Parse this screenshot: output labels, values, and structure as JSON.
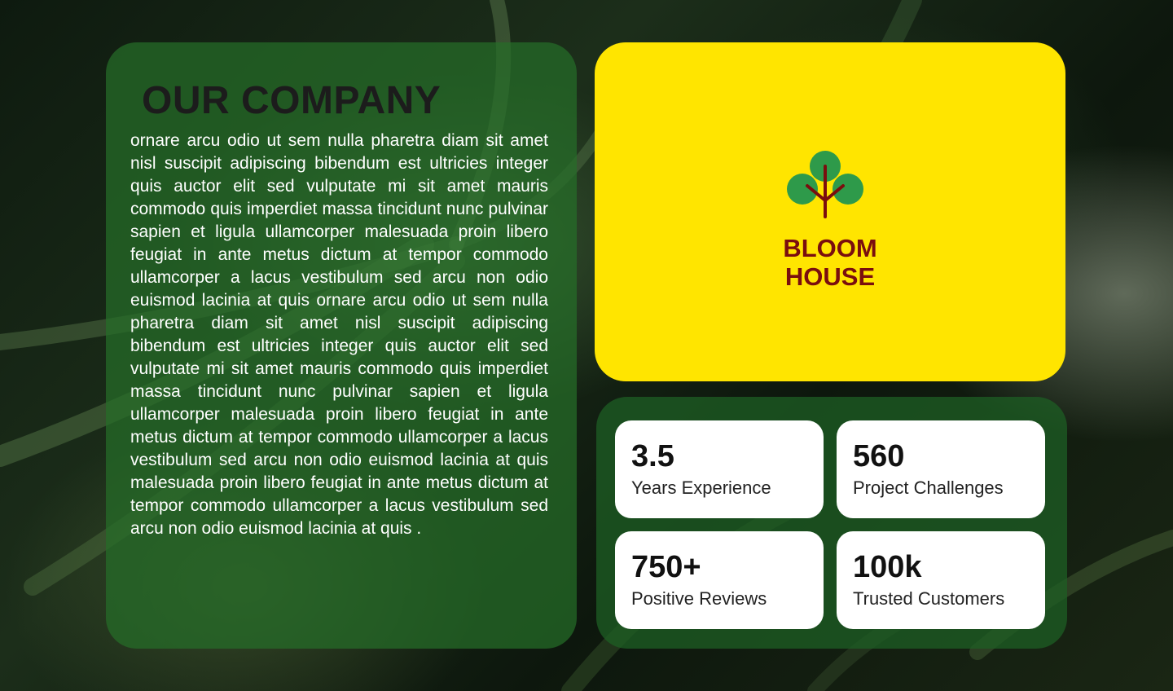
{
  "company": {
    "title": "OUR COMPANY",
    "body": "ornare arcu odio ut sem nulla pharetra diam sit amet nisl suscipit adipiscing bibendum est ultricies integer quis auctor elit sed vulputate mi sit amet mauris commodo quis imperdiet massa tincidunt nunc pulvinar sapien et ligula ullamcorper malesuada proin libero feugiat in ante metus dictum at tempor commodo ullamcorper a lacus vestibulum sed arcu non odio euismod lacinia at quis ornare arcu odio ut sem nulla pharetra diam sit amet nisl suscipit adipiscing bibendum est ultricies integer quis auctor elit sed vulputate mi sit amet mauris commodo quis imperdiet massa tincidunt nunc pulvinar sapien et ligula ullamcorper malesuada proin libero feugiat in ante metus dictum at tempor commodo ullamcorper a lacus vestibulum sed arcu non odio euismod lacinia at quis  malesuada proin libero feugiat in ante metus dictum at tempor commodo ullamcorper a lacus vestibulum sed arcu non odio euismod lacinia at quis ."
  },
  "brand": {
    "line1": "BLOOM",
    "line2": "HOUSE",
    "icon": "tree-icon",
    "colors": {
      "card": "#ffe500",
      "text": "#7a0e0e",
      "leaf": "#2e9a4a",
      "stem": "#7a0e0e"
    }
  },
  "stats": [
    {
      "value": "3.5",
      "label": "Years Experience"
    },
    {
      "value": "560",
      "label": "Project Challenges"
    },
    {
      "value": "750+",
      "label": "Positive Reviews"
    },
    {
      "value": "100k",
      "label": "Trusted Customers"
    }
  ],
  "colors": {
    "panel_green": "#266e28",
    "title_dark": "#1c1c1c",
    "stat_card": "#ffffff"
  }
}
